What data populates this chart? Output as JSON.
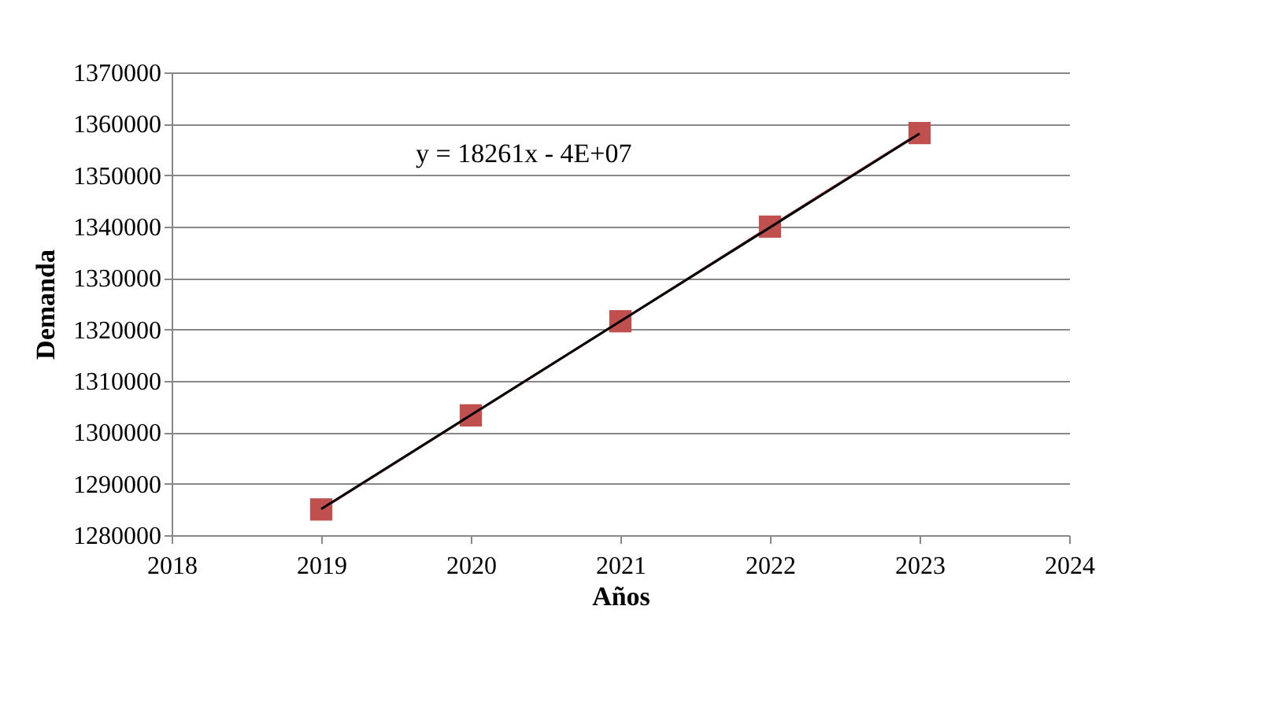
{
  "chart_data": {
    "type": "line",
    "xlabel": "Años",
    "ylabel": "Demanda",
    "x": [
      2019,
      2020,
      2021,
      2022,
      2023
    ],
    "series": [
      {
        "color": "#c0504d",
        "marker": "square",
        "values": [
          1285000,
          1303300,
          1321600,
          1340000,
          1358200
        ]
      },
      {
        "type": "line",
        "color": "#000000",
        "marker": "none",
        "x": [
          2019,
          2023
        ],
        "values": [
          1285100,
          1358100
        ]
      }
    ],
    "annotations": [
      "y = 18261x - 4E+07"
    ],
    "xlim": [
      2018,
      2024
    ],
    "xticks": [
      2018,
      2019,
      2020,
      2021,
      2022,
      2023,
      2024
    ],
    "ylim": [
      1280000,
      1370000
    ],
    "yticks": [
      1280000,
      1290000,
      1300000,
      1310000,
      1320000,
      1330000,
      1340000,
      1350000,
      1360000,
      1370000
    ],
    "grid": "y",
    "line_style": "solid"
  }
}
